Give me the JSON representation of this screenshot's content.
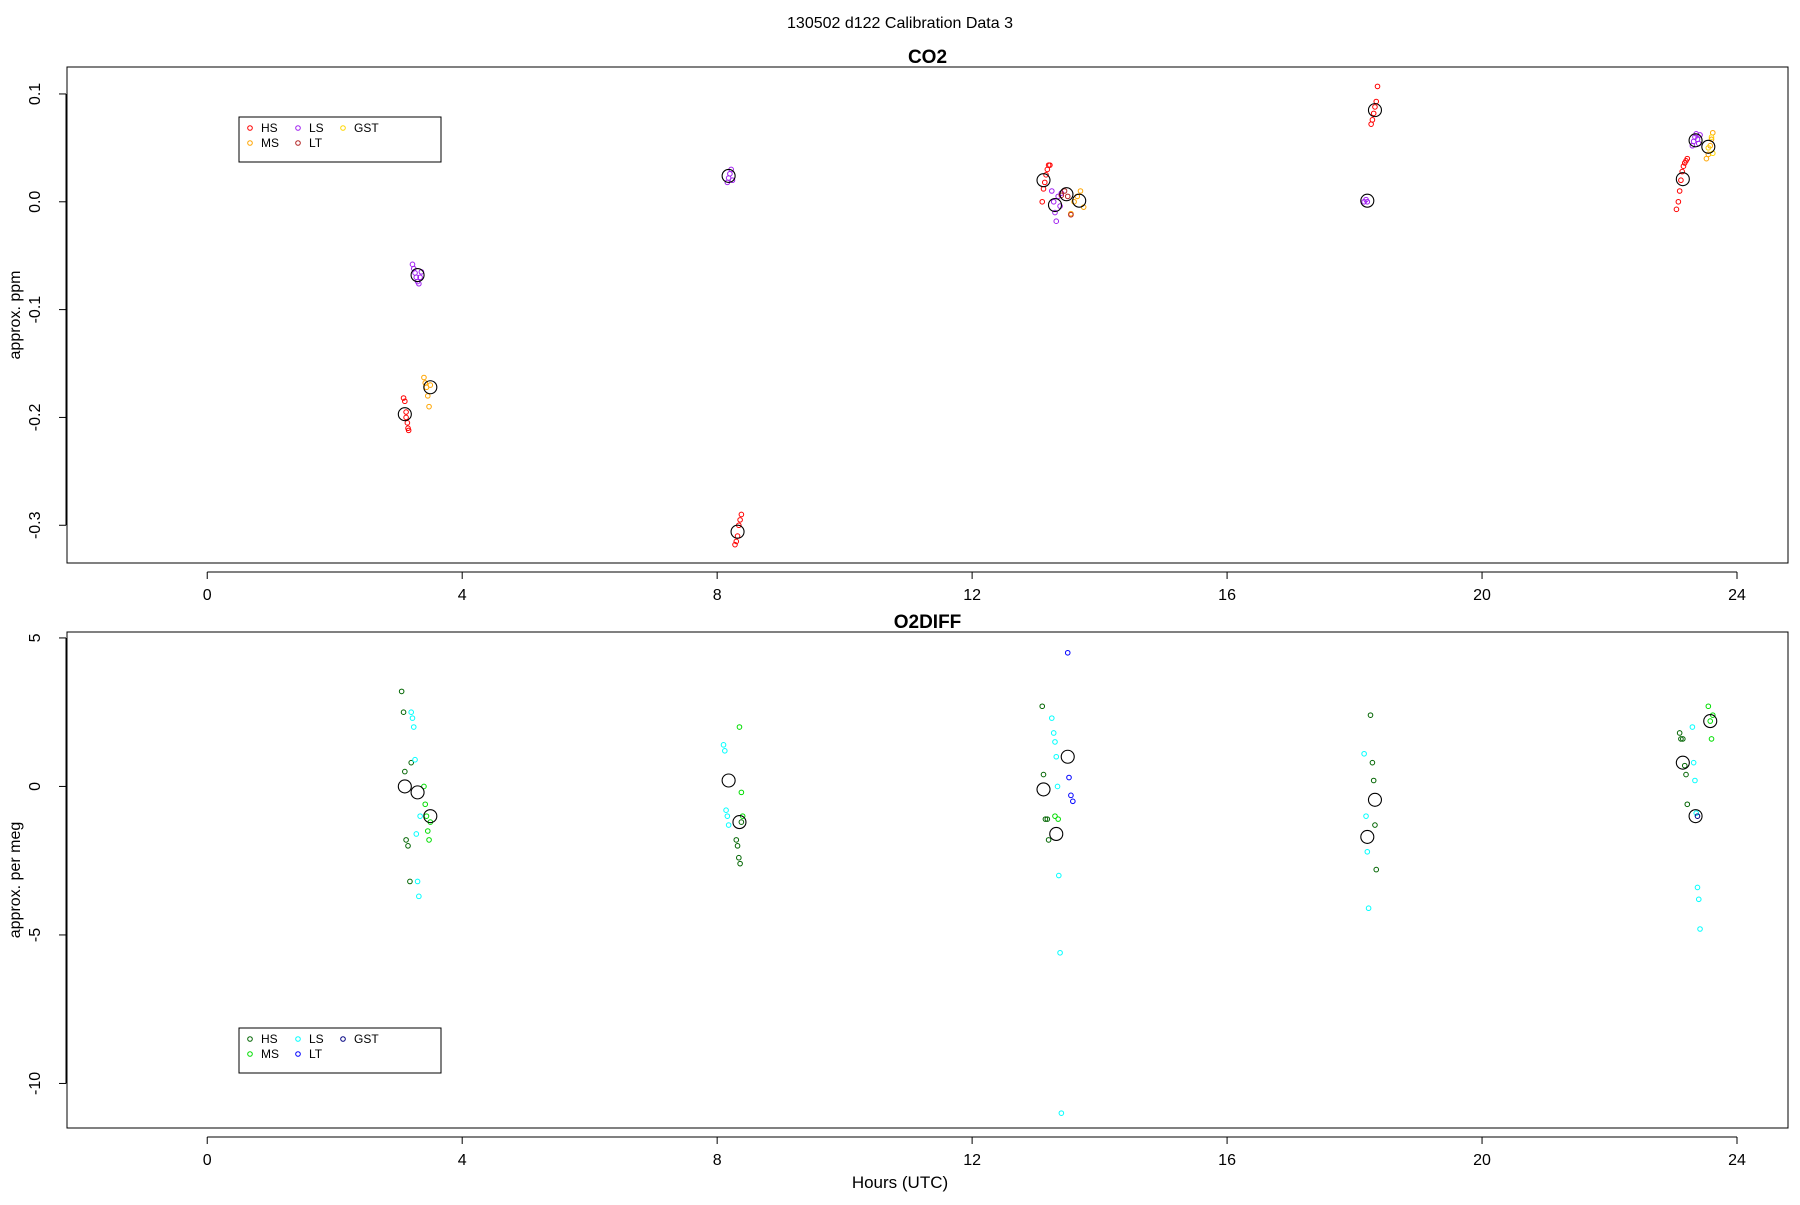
{
  "page_title": "130502   d122   Calibration Data 3",
  "xlabel": "Hours (UTC)",
  "chart_data": [
    {
      "type": "scatter",
      "title": "CO2",
      "ylabel": "approx. ppm",
      "xlabel": "",
      "xlim": [
        -2.2,
        24.8
      ],
      "ylim": [
        -0.335,
        0.125
      ],
      "xticks": [
        0,
        4,
        8,
        12,
        16,
        20,
        24
      ],
      "yticks": [
        -0.3,
        -0.2,
        -0.1,
        0.0,
        0.1
      ],
      "ytick_labels": [
        "-0.3",
        "-0.2",
        "-0.1",
        "0.0",
        "0.1"
      ],
      "grid": false,
      "legend_position": "top-left",
      "series": [
        {
          "name": "HS",
          "color": "#ff0000",
          "x": [
            3.08,
            3.1,
            3.12,
            3.12,
            3.14,
            3.15,
            3.16,
            8.28,
            8.3,
            8.32,
            8.34,
            8.36,
            8.38,
            13.1,
            13.12,
            13.14,
            13.16,
            13.18,
            13.2,
            13.22,
            18.26,
            18.28,
            18.3,
            18.32,
            18.34,
            18.36,
            23.05,
            23.08,
            23.1,
            23.12,
            23.14,
            23.16,
            23.18,
            23.2,
            23.22
          ],
          "y": [
            -0.182,
            -0.185,
            -0.195,
            -0.2,
            -0.205,
            -0.21,
            -0.212,
            -0.318,
            -0.315,
            -0.31,
            -0.3,
            -0.295,
            -0.29,
            0.0,
            0.012,
            0.018,
            0.025,
            0.03,
            0.034,
            0.034,
            0.072,
            0.076,
            0.082,
            0.088,
            0.093,
            0.107,
            -0.007,
            0.0,
            0.01,
            0.02,
            0.028,
            0.033,
            0.036,
            0.038,
            0.04
          ]
        },
        {
          "name": "MS",
          "color": "#ffa500",
          "x": [
            3.4,
            3.42,
            3.44,
            3.46,
            3.48,
            3.5,
            13.55,
            13.6,
            13.65,
            13.7,
            13.75,
            23.52,
            23.55,
            23.58,
            23.6,
            23.62
          ],
          "y": [
            -0.163,
            -0.168,
            -0.172,
            -0.18,
            -0.19,
            -0.17,
            -0.011,
            0.0,
            0.005,
            0.01,
            -0.005,
            0.04,
            0.044,
            0.052,
            0.058,
            0.064
          ]
        },
        {
          "name": "LS",
          "color": "#a020f0",
          "x": [
            3.22,
            3.24,
            3.26,
            3.28,
            3.3,
            3.32,
            3.34,
            3.36,
            8.16,
            8.18,
            8.2,
            8.22,
            8.24,
            13.25,
            13.28,
            13.3,
            13.32,
            13.35,
            13.38,
            13.4,
            18.15,
            18.18,
            18.2,
            23.3,
            23.32,
            23.34,
            23.36,
            23.38,
            23.4,
            23.42
          ],
          "y": [
            -0.058,
            -0.062,
            -0.066,
            -0.07,
            -0.074,
            -0.076,
            -0.07,
            -0.065,
            0.018,
            0.022,
            0.026,
            0.03,
            0.02,
            0.01,
            0.0,
            -0.01,
            -0.018,
            0.005,
            -0.004,
            0.008,
            0.0,
            0.002,
            0.0,
            0.052,
            0.056,
            0.06,
            0.063,
            0.058,
            0.054,
            0.062
          ]
        },
        {
          "name": "LT",
          "color": "#b22222",
          "x": [
            13.4,
            13.45,
            13.5,
            13.55
          ],
          "y": [
            0.006,
            0.01,
            0.005,
            -0.012
          ]
        },
        {
          "name": "GST",
          "color": "#ffd700",
          "x": [
            23.55,
            23.6,
            23.62
          ],
          "y": [
            0.05,
            0.06,
            0.045
          ]
        }
      ],
      "means": {
        "x": [
          3.1,
          3.3,
          3.5,
          8.18,
          8.32,
          13.12,
          13.3,
          13.48,
          13.68,
          18.2,
          18.32,
          23.15,
          23.35,
          23.55
        ],
        "y": [
          -0.197,
          -0.068,
          -0.172,
          0.024,
          -0.306,
          0.02,
          -0.003,
          0.007,
          0.001,
          0.001,
          0.085,
          0.021,
          0.057,
          0.051
        ]
      }
    },
    {
      "type": "scatter",
      "title": "O2DIFF",
      "ylabel": "approx. per meg",
      "xlabel": "Hours (UTC)",
      "xlim": [
        -2.2,
        24.8
      ],
      "ylim": [
        -11.5,
        5.2
      ],
      "xticks": [
        0,
        4,
        8,
        12,
        16,
        20,
        24
      ],
      "yticks": [
        -10,
        -5,
        0,
        5
      ],
      "ytick_labels": [
        "-10",
        "-5",
        "0",
        "5"
      ],
      "grid": false,
      "legend_position": "bottom-left",
      "series": [
        {
          "name": "HS",
          "color": "#006400",
          "x": [
            3.05,
            3.08,
            3.1,
            3.12,
            3.15,
            3.18,
            3.2,
            8.3,
            8.32,
            8.34,
            8.36,
            8.38,
            13.1,
            13.12,
            13.15,
            13.18,
            13.2,
            18.25,
            18.28,
            18.3,
            18.32,
            18.34,
            23.1,
            23.12,
            23.15,
            23.18,
            23.2,
            23.22
          ],
          "y": [
            3.2,
            2.5,
            0.5,
            -1.8,
            -2.0,
            -3.2,
            0.8,
            -1.8,
            -2.0,
            -2.4,
            -2.6,
            -1.2,
            2.7,
            0.4,
            -1.1,
            -1.1,
            -1.8,
            2.4,
            0.8,
            0.2,
            -1.3,
            -2.8,
            1.8,
            1.6,
            1.6,
            0.7,
            0.4,
            -0.6
          ]
        },
        {
          "name": "MS",
          "color": "#00dd00",
          "x": [
            3.4,
            3.42,
            3.44,
            3.46,
            3.48,
            3.5,
            8.35,
            8.38,
            8.4,
            13.3,
            13.35,
            23.55,
            23.58,
            23.6,
            23.62
          ],
          "y": [
            0.0,
            -0.6,
            -1.0,
            -1.5,
            -1.8,
            -1.2,
            2.0,
            -0.2,
            -1.0,
            -1.0,
            -1.1,
            2.7,
            2.2,
            1.6,
            2.4
          ]
        },
        {
          "name": "LS",
          "color": "#00ffff",
          "x": [
            3.2,
            3.22,
            3.24,
            3.26,
            3.28,
            3.3,
            3.32,
            3.34,
            8.1,
            8.12,
            8.14,
            8.16,
            8.18,
            13.25,
            13.28,
            13.3,
            13.32,
            13.34,
            13.36,
            13.38,
            13.4,
            18.15,
            18.18,
            18.2,
            18.22,
            23.3,
            23.32,
            23.34,
            23.36,
            23.38,
            23.4,
            23.42
          ],
          "y": [
            2.5,
            2.3,
            2.0,
            0.9,
            -1.6,
            -3.2,
            -3.7,
            -1.0,
            1.4,
            1.2,
            -0.8,
            -1.0,
            -1.3,
            2.3,
            1.8,
            1.5,
            1.0,
            0.0,
            -3.0,
            -5.6,
            -11.0,
            1.1,
            -1.0,
            -2.2,
            -4.1,
            2.0,
            0.8,
            0.2,
            -0.9,
            -3.4,
            -3.8,
            -4.8
          ]
        },
        {
          "name": "LT",
          "color": "#0000ff",
          "x": [
            13.5,
            13.52,
            13.55,
            13.58
          ],
          "y": [
            4.5,
            0.3,
            -0.3,
            -0.5
          ]
        },
        {
          "name": "GST",
          "color": "#000080",
          "x": [
            23.38
          ],
          "y": [
            -1.0
          ]
        }
      ],
      "means": {
        "x": [
          3.1,
          3.3,
          3.5,
          8.18,
          8.35,
          13.12,
          13.32,
          13.5,
          18.2,
          18.32,
          23.15,
          23.35,
          23.58
        ],
        "y": [
          0.0,
          -0.2,
          -1.0,
          0.2,
          -1.2,
          -0.1,
          -1.6,
          1.0,
          -1.7,
          -0.45,
          0.8,
          -1.0,
          2.2
        ]
      }
    }
  ]
}
